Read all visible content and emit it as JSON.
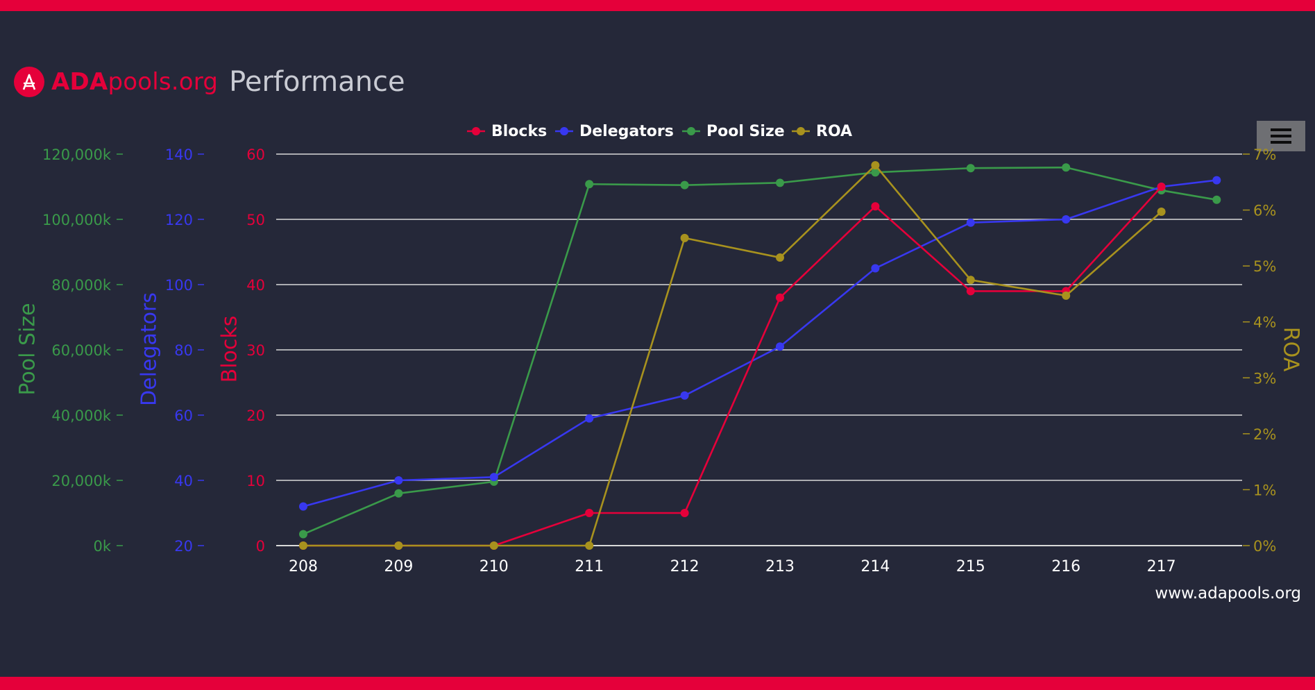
{
  "brand": {
    "name_bold": "ADA",
    "name_rest": "pools.org",
    "title": "Performance"
  },
  "menu_icon": "hamburger-menu-icon",
  "watermark": "www.adapools.org",
  "colors": {
    "background": "#252839",
    "accent": "#e5003a",
    "blocks": "#e5003a",
    "delegators": "#3838f0",
    "pool_size": "#3a9a4a",
    "roa": "#a8921e",
    "grid": "#d9d9d9"
  },
  "chart_data": {
    "type": "line",
    "x": [
      "208",
      "209",
      "210",
      "211",
      "212",
      "213",
      "214",
      "215",
      "216",
      "217"
    ],
    "legend": [
      "Blocks",
      "Delegators",
      "Pool Size",
      "ROA"
    ],
    "legend_position": "top-center",
    "grid": true,
    "axes": {
      "pool_size": {
        "label": "Pool Size",
        "ticks": [
          "0k",
          "20,000k",
          "40,000k",
          "60,000k",
          "80,000k",
          "100,000k",
          "120,000k"
        ],
        "range": [
          0,
          120000
        ]
      },
      "delegators": {
        "label": "Delegators",
        "ticks": [
          "20",
          "40",
          "60",
          "80",
          "100",
          "120",
          "140"
        ],
        "range": [
          20,
          140
        ]
      },
      "blocks": {
        "label": "Blocks",
        "ticks": [
          "0",
          "10",
          "20",
          "30",
          "40",
          "50",
          "60"
        ],
        "range": [
          0,
          60
        ]
      },
      "roa": {
        "label": "ROA",
        "ticks": [
          "0%",
          "1%",
          "2%",
          "3%",
          "4%",
          "5%",
          "6%",
          "7%"
        ],
        "range": [
          0,
          7
        ]
      }
    },
    "series": [
      {
        "name": "Blocks",
        "axis": "blocks",
        "x": [
          0,
          1,
          2,
          3,
          4,
          5,
          6,
          7,
          8,
          9
        ],
        "values": [
          0,
          0,
          0,
          5,
          5,
          38,
          52,
          39,
          39,
          55
        ]
      },
      {
        "name": "Delegators",
        "axis": "delegators",
        "x": [
          0,
          1,
          2,
          3,
          4,
          5,
          6,
          7,
          8,
          9,
          9.58
        ],
        "values": [
          32,
          40,
          41,
          59,
          66,
          81,
          105,
          119,
          120,
          130,
          132
        ]
      },
      {
        "name": "Pool Size",
        "axis": "pool_size",
        "x": [
          0,
          1,
          2,
          3,
          4,
          5,
          6,
          7,
          8,
          9,
          9.58
        ],
        "values": [
          3500,
          16000,
          19600,
          110800,
          110500,
          111200,
          114400,
          115700,
          115900,
          108900,
          106000
        ]
      },
      {
        "name": "ROA",
        "axis": "roa",
        "x": [
          0,
          1,
          2,
          3,
          4,
          5,
          6,
          7,
          8,
          9
        ],
        "values": [
          0,
          0,
          0,
          0,
          5.5,
          5.15,
          6.8,
          4.75,
          4.47,
          5.97
        ]
      }
    ]
  }
}
